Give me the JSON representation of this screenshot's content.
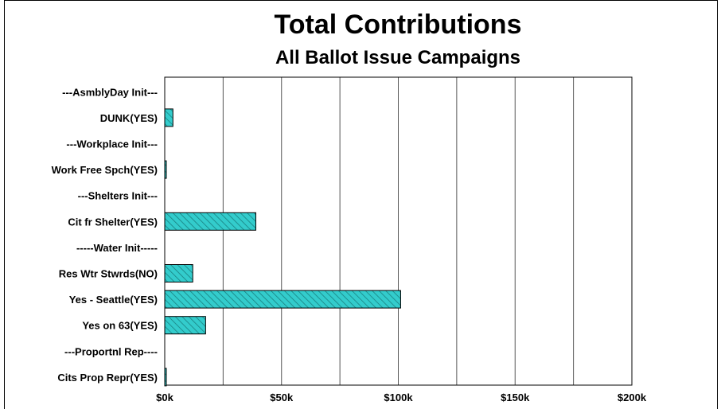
{
  "chart_data": {
    "type": "bar",
    "orientation": "horizontal",
    "title": "Total Contributions",
    "subtitle": "All Ballot Issue Campaigns",
    "categories": [
      "---AsmblyDay Init---",
      "DUNK(YES)",
      "---Workplace Init---",
      "Work Free Spch(YES)",
      "---Shelters Init---",
      "Cit fr Shelter(YES)",
      "-----Water Init-----",
      "Res Wtr Stwrds(NO)",
      "Yes - Seattle(YES)",
      "Yes on 63(YES)",
      "---Proportnl Rep----",
      "Cits Prop Repr(YES)"
    ],
    "values": [
      0,
      3500,
      0,
      500,
      0,
      39000,
      0,
      12000,
      101000,
      17500,
      0,
      500
    ],
    "xlim": [
      0,
      200000
    ],
    "xticks": [
      0,
      50000,
      100000,
      150000,
      200000
    ],
    "xtick_labels": [
      "$0k",
      "$50k",
      "$100k",
      "$150k",
      "$200k"
    ],
    "grid": "vertical",
    "bar_color": "#33cccc",
    "bar_pattern": "diagonal-hatch"
  }
}
